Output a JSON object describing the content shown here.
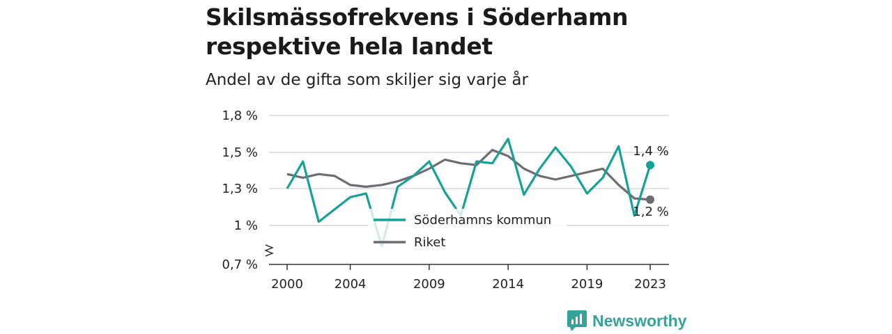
{
  "header": {
    "title": "Skilsmässofrekvens i Söderhamn respektive hela landet",
    "subtitle": "Andel av de gifta som skiljer sig varje år"
  },
  "brand": {
    "name": "Newsworthy",
    "icon": "newsworthy-logo-icon",
    "color": "#36a39a"
  },
  "chart_data": {
    "type": "line",
    "title": "Skilsmässofrekvens i Söderhamn respektive hela landet",
    "subtitle": "Andel av de gifta som skiljer sig varje år",
    "x": [
      2000,
      2001,
      2002,
      2003,
      2004,
      2005,
      2006,
      2007,
      2008,
      2009,
      2010,
      2011,
      2012,
      2013,
      2014,
      2015,
      2016,
      2017,
      2018,
      2019,
      2020,
      2021,
      2022,
      2023
    ],
    "x_ticks": [
      2000,
      2004,
      2009,
      2014,
      2019,
      2023
    ],
    "y_ticks": [
      {
        "value": 0.7,
        "label": "0,7 %"
      },
      {
        "value": 1.0,
        "label": "1 %"
      },
      {
        "value": 1.3,
        "label": "1,3 %"
      },
      {
        "value": 1.5,
        "label": "1,5 %"
      },
      {
        "value": 1.8,
        "label": "1,8 %"
      }
    ],
    "ylim": [
      0.7,
      1.8
    ],
    "y_axis_break": true,
    "grid": true,
    "legend_position": "bottom-center",
    "series": [
      {
        "name": "Söderhamns kommun",
        "color": "#14a196",
        "faded_color": "#c4e7e3",
        "values": [
          1.3,
          1.45,
          1.03,
          1.13,
          1.23,
          1.26,
          0.84,
          1.31,
          1.37,
          1.45,
          1.27,
          1.08,
          1.45,
          1.44,
          1.61,
          1.25,
          1.41,
          1.54,
          1.42,
          1.26,
          1.36,
          1.55,
          1.08,
          1.43
        ],
        "end_label": "1,4 %"
      },
      {
        "name": "Riket",
        "color": "#6f6b73",
        "values": [
          1.38,
          1.36,
          1.38,
          1.37,
          1.32,
          1.31,
          1.32,
          1.34,
          1.37,
          1.41,
          1.46,
          1.44,
          1.43,
          1.52,
          1.48,
          1.41,
          1.37,
          1.35,
          1.37,
          1.39,
          1.41,
          1.32,
          1.22,
          1.21
        ],
        "end_label": "1,2 %"
      }
    ]
  }
}
